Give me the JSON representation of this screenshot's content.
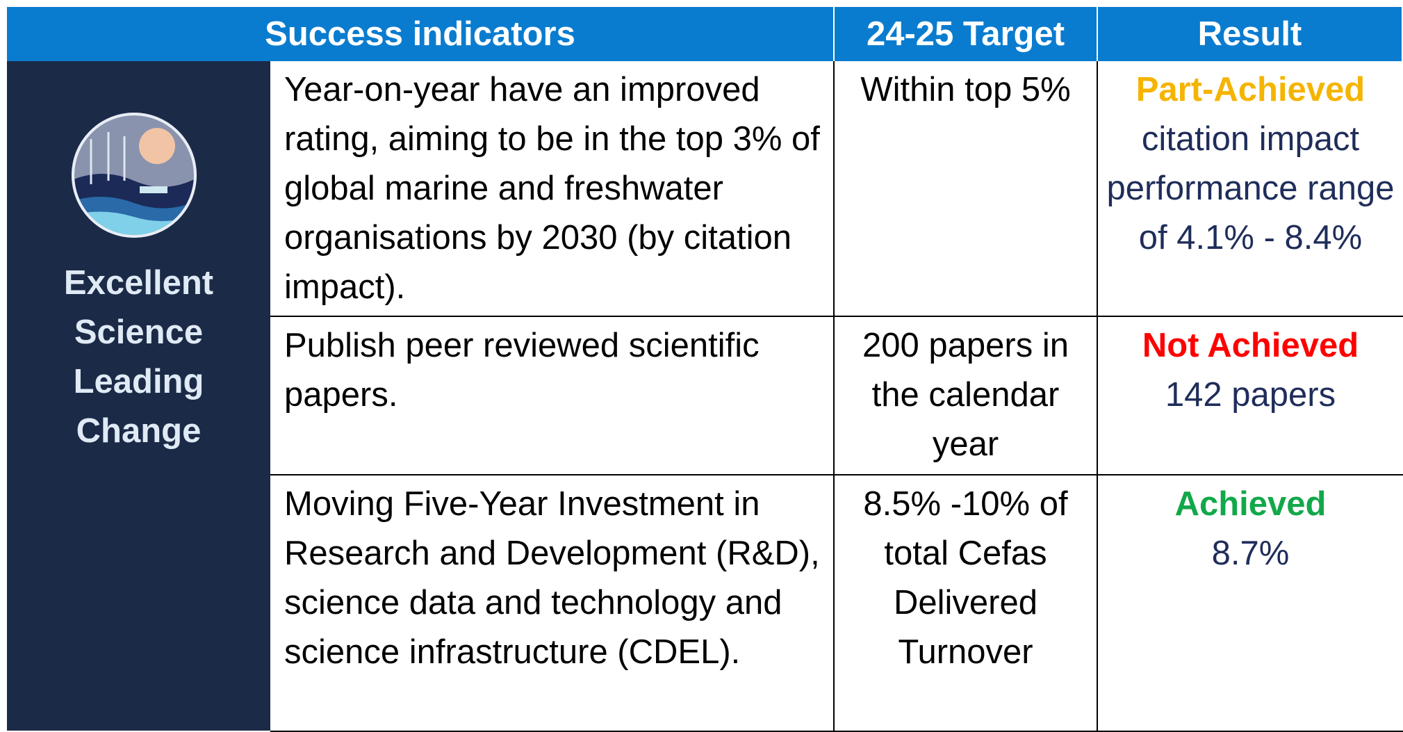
{
  "header": [
    "Success indicators",
    "24-25 Target",
    "Result"
  ],
  "category": "Excellent Science Leading Change",
  "rows": [
    {
      "indicator": "Year-on-year have an improved rating, aiming to be in the top 3% of global marine and freshwater organisations by 2030 (by citation impact).",
      "target": "Within top 5%",
      "status": "Part-Achieved",
      "status_color": "#f5b400",
      "detail": "citation impact performance range of 4.1% - 8.4%"
    },
    {
      "indicator": "Publish peer reviewed scientific papers.",
      "target": "200 papers in the calendar year",
      "status": "Not Achieved",
      "status_color": "#ff0000",
      "detail": "142 papers"
    },
    {
      "indicator": "Moving Five-Year Investment in Research and Development (R&D), science data and technology and science infrastructure (CDEL).",
      "target": "8.5% -10% of total Cefas Delivered Turnover",
      "status": "Achieved",
      "status_color": "#12a84a",
      "detail": "8.7%"
    }
  ]
}
